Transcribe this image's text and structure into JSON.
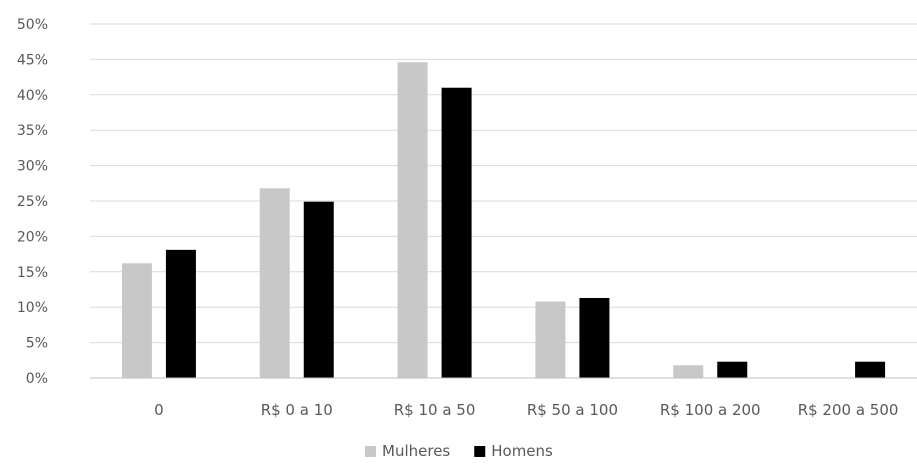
{
  "chart_data": {
    "type": "bar",
    "categories": [
      "0",
      "R$ 0 a 10",
      "R$ 10 a 50",
      "R$ 50 a 100",
      "R$ 100 a 200",
      "R$ 200 a 500"
    ],
    "series": [
      {
        "name": "Mulheres",
        "color": "#c8c8c8",
        "values": [
          16.2,
          26.8,
          44.6,
          10.8,
          1.8,
          0
        ]
      },
      {
        "name": "Homens",
        "color": "#000000",
        "values": [
          18.1,
          24.9,
          41.0,
          11.3,
          2.3,
          2.3
        ]
      }
    ],
    "ylim": [
      0,
      50
    ],
    "yticks": [
      "0%",
      "5%",
      "10%",
      "15%",
      "20%",
      "25%",
      "30%",
      "35%",
      "40%",
      "45%",
      "50%"
    ],
    "ytick_values": [
      0,
      5,
      10,
      15,
      20,
      25,
      30,
      35,
      40,
      45,
      50
    ],
    "grid": true,
    "legend_position": "bottom",
    "title": "",
    "xlabel": "",
    "ylabel": ""
  }
}
